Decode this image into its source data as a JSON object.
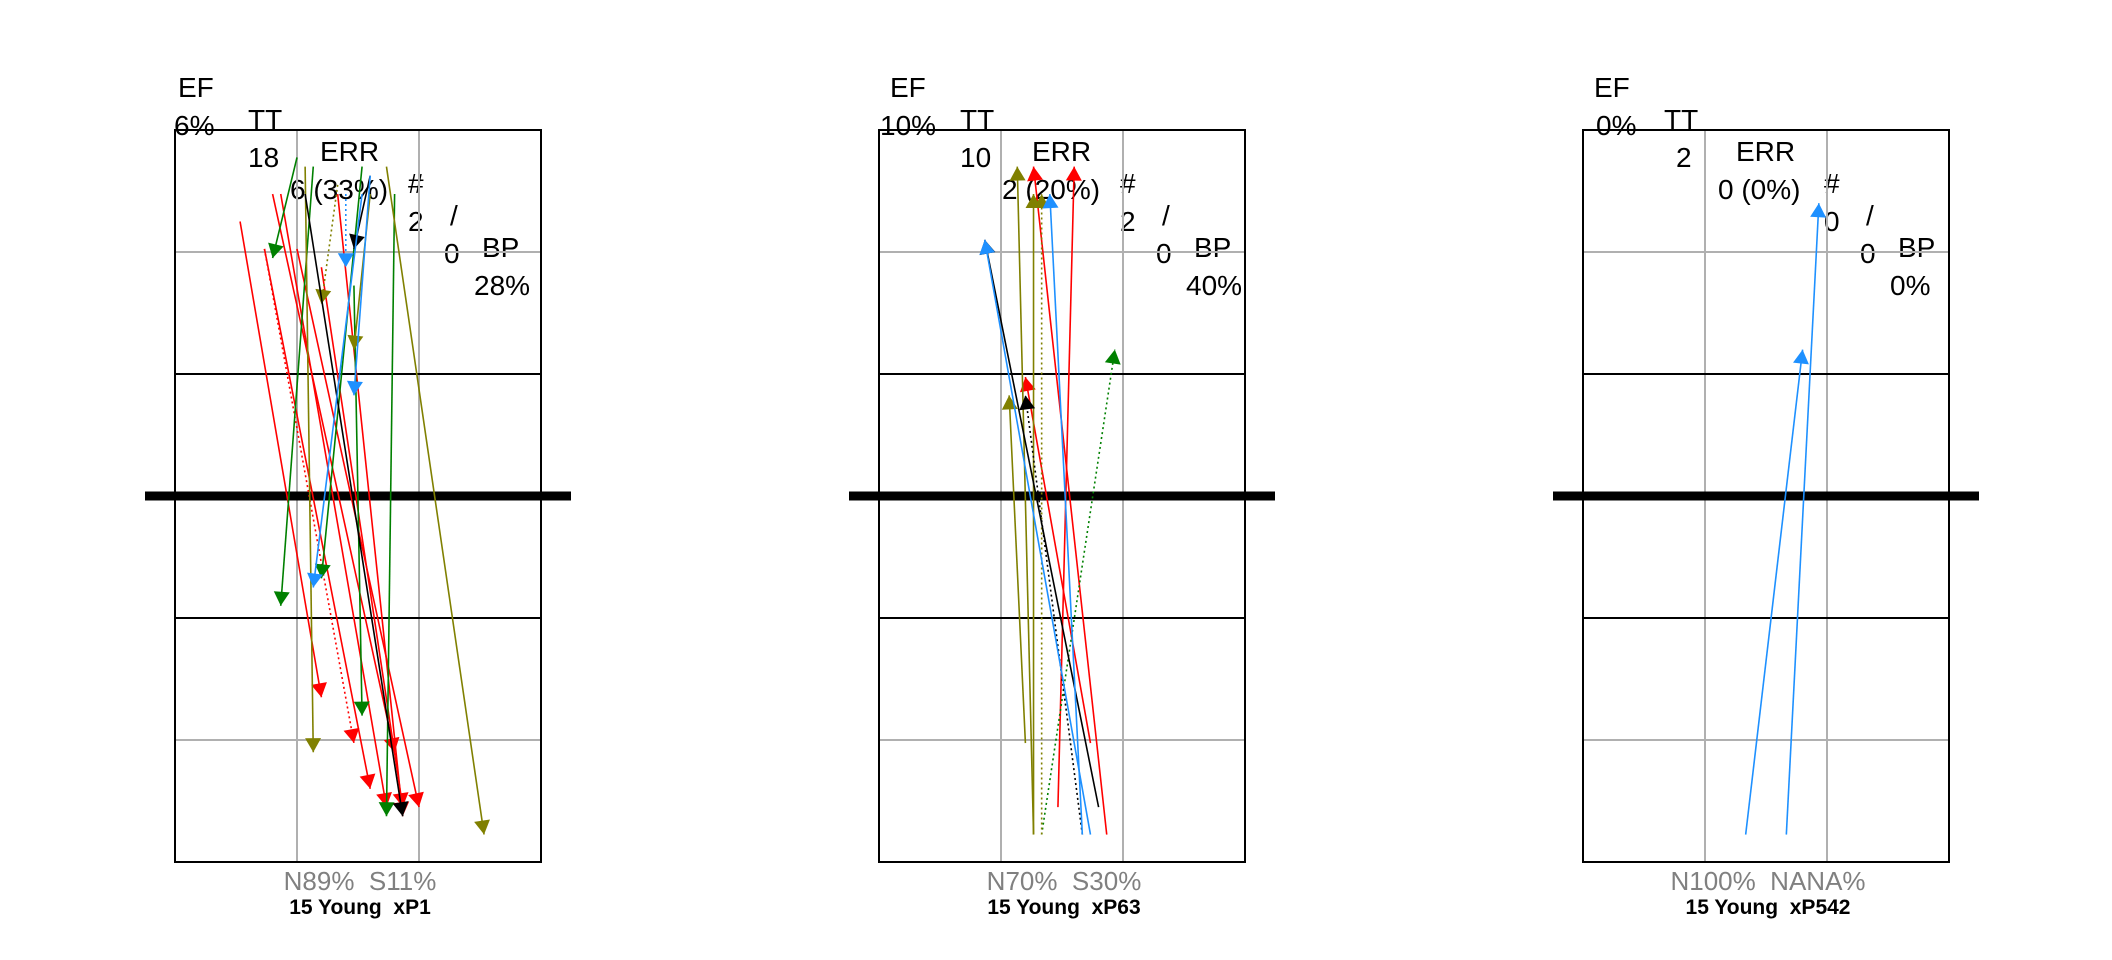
{
  "chart_data": [
    {
      "type": "attack-trajectory",
      "stats_header": [
        "EF",
        "TT",
        "ERR",
        "#",
        "/",
        "BP"
      ],
      "stats_values": [
        "6%",
        "18",
        "6 (33%)",
        "2",
        "0",
        "28%"
      ],
      "zone_split": "N89%  S11%",
      "player_label": "15 Young  xP1",
      "colors": {
        "kill": "#ff0000",
        "error": "#000000",
        "positive": "#008000",
        "neutral": "#808000",
        "blocked": "#1e90ff"
      },
      "trajectories": [
        {
          "from": [
            5.7,
            8.0
          ],
          "to": [
            7.2,
            1.9
          ],
          "color": "kill",
          "style": "solid"
        },
        {
          "from": [
            6.0,
            7.4
          ],
          "to": [
            7.5,
            1.3
          ],
          "color": "kill",
          "style": "solid"
        },
        {
          "from": [
            5.8,
            8.0
          ],
          "to": [
            7.1,
            1.3
          ],
          "color": "kill",
          "style": "solid"
        },
        {
          "from": [
            5.6,
            7.4
          ],
          "to": [
            6.9,
            1.5
          ],
          "color": "kill",
          "style": "solid"
        },
        {
          "from": [
            5.6,
            7.4
          ],
          "to": [
            6.7,
            2.0
          ],
          "color": "kill",
          "style": "dotted"
        },
        {
          "from": [
            6.5,
            8.0
          ],
          "to": [
            7.3,
            1.2
          ],
          "color": "kill",
          "style": "solid"
        },
        {
          "from": [
            5.3,
            7.7
          ],
          "to": [
            6.3,
            2.5
          ],
          "color": "kill",
          "style": "solid"
        },
        {
          "from": [
            6.3,
            7.2
          ],
          "to": [
            7.3,
            1.3
          ],
          "color": "kill",
          "style": "solid"
        },
        {
          "from": [
            6.8,
            8.3
          ],
          "to": [
            6.3,
            3.8
          ],
          "color": "positive",
          "style": "solid"
        },
        {
          "from": [
            7.2,
            8.0
          ],
          "to": [
            7.1,
            1.2
          ],
          "color": "positive",
          "style": "solid"
        },
        {
          "from": [
            6.0,
            8.4
          ],
          "to": [
            5.7,
            7.3
          ],
          "color": "positive",
          "style": "solid"
        },
        {
          "from": [
            6.7,
            7.0
          ],
          "to": [
            6.8,
            2.3
          ],
          "color": "positive",
          "style": "solid"
        },
        {
          "from": [
            6.2,
            8.3
          ],
          "to": [
            5.8,
            3.5
          ],
          "color": "positive",
          "style": "solid"
        },
        {
          "from": [
            6.9,
            8.0
          ],
          "to": [
            6.7,
            6.3
          ],
          "color": "neutral",
          "style": "solid"
        },
        {
          "from": [
            6.1,
            8.3
          ],
          "to": [
            6.2,
            1.9
          ],
          "color": "neutral",
          "style": "solid"
        },
        {
          "from": [
            7.1,
            8.3
          ],
          "to": [
            8.3,
            1.0
          ],
          "color": "neutral",
          "style": "solid"
        },
        {
          "from": [
            6.5,
            8.1
          ],
          "to": [
            6.3,
            6.8
          ],
          "color": "neutral",
          "style": "dotted"
        },
        {
          "from": [
            6.1,
            8.0
          ],
          "to": [
            7.3,
            1.2
          ],
          "color": "error",
          "style": "solid"
        },
        {
          "from": [
            6.9,
            8.2
          ],
          "to": [
            6.7,
            7.4
          ],
          "color": "error",
          "style": "solid"
        },
        {
          "from": [
            6.8,
            8.0
          ],
          "to": [
            6.2,
            3.7
          ],
          "color": "blocked",
          "style": "solid"
        },
        {
          "from": [
            6.9,
            8.2
          ],
          "to": [
            6.7,
            5.8
          ],
          "color": "blocked",
          "style": "solid"
        },
        {
          "from": [
            6.6,
            8.0
          ],
          "to": [
            6.6,
            7.2
          ],
          "color": "blocked",
          "style": "dotted"
        }
      ]
    },
    {
      "type": "attack-trajectory",
      "stats_header": [
        "EF",
        "TT",
        "ERR",
        "#",
        "/",
        "BP"
      ],
      "stats_values": [
        "10%",
        "10",
        "2 (20%)",
        "2",
        "0",
        "40%"
      ],
      "zone_split": "N70%  S30%",
      "player_label": "15 Young  xP63",
      "colors": {
        "kill": "#ff0000",
        "error": "#000000",
        "positive": "#008000",
        "neutral": "#808000",
        "blocked": "#1e90ff"
      },
      "trajectories": [
        {
          "from": [
            7.3,
            1.0
          ],
          "to": [
            6.4,
            8.3
          ],
          "color": "kill",
          "style": "solid"
        },
        {
          "from": [
            6.7,
            1.3
          ],
          "to": [
            6.9,
            8.3
          ],
          "color": "kill",
          "style": "solid"
        },
        {
          "from": [
            7.1,
            2.0
          ],
          "to": [
            6.3,
            6.0
          ],
          "color": "kill",
          "style": "solid"
        },
        {
          "from": [
            6.5,
            1.0
          ],
          "to": [
            7.4,
            6.3
          ],
          "color": "positive",
          "style": "dotted"
        },
        {
          "from": [
            6.4,
            1.0
          ],
          "to": [
            6.2,
            8.3
          ],
          "color": "neutral",
          "style": "solid"
        },
        {
          "from": [
            6.4,
            1.0
          ],
          "to": [
            6.4,
            8.0
          ],
          "color": "neutral",
          "style": "solid"
        },
        {
          "from": [
            6.3,
            2.0
          ],
          "to": [
            6.1,
            5.8
          ],
          "color": "neutral",
          "style": "solid"
        },
        {
          "from": [
            6.5,
            1.0
          ],
          "to": [
            6.5,
            8.0
          ],
          "color": "neutral",
          "style": "dotted"
        },
        {
          "from": [
            7.2,
            1.3
          ],
          "to": [
            5.8,
            7.5
          ],
          "color": "error",
          "style": "solid"
        },
        {
          "from": [
            7.0,
            1.0
          ],
          "to": [
            6.3,
            5.8
          ],
          "color": "error",
          "style": "dotted"
        },
        {
          "from": [
            7.1,
            1.0
          ],
          "to": [
            5.8,
            7.5
          ],
          "color": "blocked",
          "style": "solid"
        },
        {
          "from": [
            7.0,
            1.0
          ],
          "to": [
            6.6,
            8.0
          ],
          "color": "blocked",
          "style": "solid"
        }
      ]
    },
    {
      "type": "attack-trajectory",
      "stats_header": [
        "EF",
        "TT",
        "ERR",
        "#",
        "/",
        "BP"
      ],
      "stats_values": [
        "0%",
        "2",
        "0 (0%)",
        "0",
        "0",
        "0%"
      ],
      "zone_split": "N100%  NANA%",
      "player_label": "15 Young  xP542",
      "colors": {
        "kill": "#ff0000",
        "error": "#000000",
        "positive": "#008000",
        "neutral": "#808000",
        "blocked": "#1e90ff"
      },
      "trajectories": [
        {
          "from": [
            6.5,
            1.0
          ],
          "to": [
            7.2,
            6.3
          ],
          "color": "blocked",
          "style": "solid"
        },
        {
          "from": [
            7.0,
            1.0
          ],
          "to": [
            7.4,
            7.9
          ],
          "color": "blocked",
          "style": "solid"
        }
      ]
    }
  ]
}
